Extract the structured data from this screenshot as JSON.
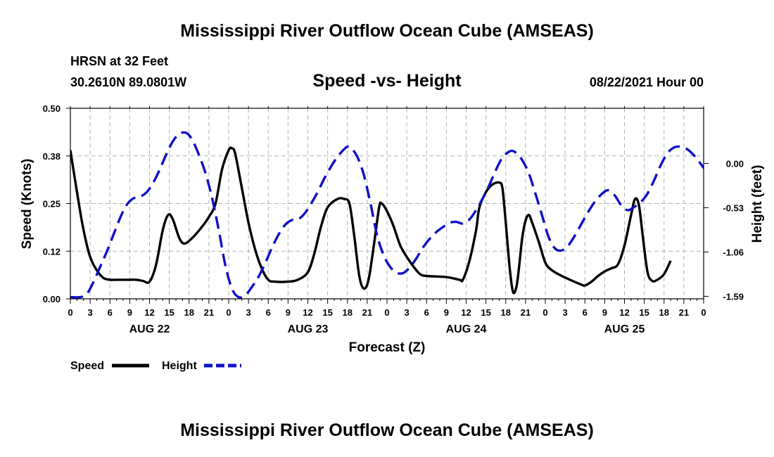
{
  "header": {
    "title": "Mississippi River Outflow Ocean Cube (AMSEAS)",
    "station": "HRSN at 32 Feet",
    "coords": "30.2610N  89.0801W",
    "subtitle": "Speed -vs- Height",
    "datetime": "08/22/2021 Hour 00"
  },
  "footer": {
    "title": "Mississippi River Outflow Ocean Cube (AMSEAS)"
  },
  "colors": {
    "speed": "#000000",
    "height": "#1010c8",
    "grid": "#b4b4b4"
  },
  "chart_data": {
    "type": "line",
    "title": "Speed -vs- Height",
    "xlabel": "Forecast (Z)",
    "ylabel_left": "Speed (Knots)",
    "ylabel_right": "Height (feet)",
    "x_range": [
      0,
      96
    ],
    "x_ticks": [
      0,
      3,
      6,
      9,
      12,
      15,
      18,
      21,
      24,
      27,
      30,
      33,
      36,
      39,
      42,
      45,
      48,
      51,
      54,
      57,
      60,
      63,
      66,
      69,
      72,
      75,
      78,
      81,
      84,
      87,
      90,
      93,
      96
    ],
    "x_tick_labels": [
      "0",
      "3",
      "6",
      "9",
      "12",
      "15",
      "18",
      "21",
      "0",
      "3",
      "6",
      "9",
      "12",
      "15",
      "18",
      "21",
      "0",
      "3",
      "6",
      "9",
      "12",
      "15",
      "18",
      "21",
      "0",
      "3",
      "6",
      "9",
      "12",
      "15",
      "18",
      "21",
      "0"
    ],
    "day_labels": [
      {
        "label": "AUG 22",
        "x": 12
      },
      {
        "label": "AUG 23",
        "x": 36
      },
      {
        "label": "AUG 24",
        "x": 60
      },
      {
        "label": "AUG 25",
        "x": 84
      }
    ],
    "ylim_left": [
      0,
      0.5
    ],
    "y_ticks_left": [
      0.0,
      0.125,
      0.25,
      0.375,
      0.5
    ],
    "y_tick_labels_left": [
      "0.00",
      "0.12",
      "0.25",
      "0.38",
      "0.50"
    ],
    "ylim_right": [
      -1.62,
      0.66
    ],
    "y_ticks_right": [
      0.0,
      -0.53,
      -1.06,
      -1.59
    ],
    "y_tick_labels_right": [
      "0.00",
      "-0.53",
      "-1.06",
      "-1.59"
    ],
    "grid": true,
    "series": [
      {
        "name": "Speed",
        "axis": "left",
        "style": "solid",
        "points": [
          [
            0,
            0.39
          ],
          [
            1,
            0.28
          ],
          [
            2,
            0.18
          ],
          [
            3,
            0.11
          ],
          [
            4,
            0.075
          ],
          [
            5,
            0.055
          ],
          [
            6,
            0.05
          ],
          [
            7,
            0.05
          ],
          [
            8,
            0.05
          ],
          [
            9,
            0.05
          ],
          [
            10,
            0.05
          ],
          [
            11,
            0.047
          ],
          [
            12,
            0.045
          ],
          [
            13,
            0.09
          ],
          [
            14,
            0.18
          ],
          [
            14.8,
            0.22
          ],
          [
            15.5,
            0.21
          ],
          [
            16.5,
            0.16
          ],
          [
            17.3,
            0.145
          ],
          [
            18.5,
            0.16
          ],
          [
            20,
            0.19
          ],
          [
            21,
            0.215
          ],
          [
            22,
            0.25
          ],
          [
            23,
            0.34
          ],
          [
            24,
            0.39
          ],
          [
            24.5,
            0.395
          ],
          [
            25,
            0.38
          ],
          [
            26,
            0.29
          ],
          [
            27,
            0.2
          ],
          [
            28,
            0.13
          ],
          [
            29,
            0.08
          ],
          [
            30,
            0.05
          ],
          [
            31,
            0.045
          ],
          [
            33,
            0.045
          ],
          [
            34.5,
            0.05
          ],
          [
            36,
            0.07
          ],
          [
            37,
            0.12
          ],
          [
            38,
            0.19
          ],
          [
            39,
            0.24
          ],
          [
            40.5,
            0.262
          ],
          [
            41.5,
            0.262
          ],
          [
            42.3,
            0.25
          ],
          [
            43,
            0.17
          ],
          [
            43.8,
            0.06
          ],
          [
            44.5,
            0.027
          ],
          [
            45.2,
            0.05
          ],
          [
            46,
            0.14
          ],
          [
            46.8,
            0.24
          ],
          [
            47.2,
            0.25
          ],
          [
            48,
            0.23
          ],
          [
            49,
            0.19
          ],
          [
            50,
            0.14
          ],
          [
            51,
            0.11
          ],
          [
            52,
            0.085
          ],
          [
            53,
            0.065
          ],
          [
            54,
            0.06
          ],
          [
            57,
            0.057
          ],
          [
            59,
            0.05
          ],
          [
            59.5,
            0.05
          ],
          [
            60.5,
            0.1
          ],
          [
            61.5,
            0.18
          ],
          [
            62,
            0.24
          ],
          [
            63,
            0.28
          ],
          [
            64,
            0.3
          ],
          [
            65,
            0.305
          ],
          [
            65.5,
            0.29
          ],
          [
            66,
            0.2
          ],
          [
            66.6,
            0.08
          ],
          [
            67.1,
            0.018
          ],
          [
            67.6,
            0.03
          ],
          [
            68,
            0.08
          ],
          [
            68.5,
            0.16
          ],
          [
            69,
            0.205
          ],
          [
            69.5,
            0.22
          ],
          [
            70,
            0.2
          ],
          [
            71,
            0.15
          ],
          [
            72,
            0.095
          ],
          [
            73,
            0.075
          ],
          [
            74.5,
            0.06
          ],
          [
            76,
            0.048
          ],
          [
            77.5,
            0.037
          ],
          [
            78,
            0.035
          ],
          [
            79,
            0.045
          ],
          [
            80,
            0.06
          ],
          [
            81,
            0.072
          ],
          [
            82,
            0.08
          ],
          [
            83,
            0.09
          ],
          [
            84,
            0.14
          ],
          [
            85,
            0.22
          ],
          [
            85.6,
            0.262
          ],
          [
            86.2,
            0.245
          ],
          [
            86.8,
            0.16
          ],
          [
            87.5,
            0.07
          ],
          [
            88.2,
            0.047
          ],
          [
            89,
            0.05
          ],
          [
            90,
            0.065
          ],
          [
            91,
            0.1
          ]
        ]
      },
      {
        "name": "Height",
        "axis": "right",
        "style": "dashed",
        "points": [
          [
            0,
            -1.6
          ],
          [
            1.5,
            -1.6
          ],
          [
            2.5,
            -1.56
          ],
          [
            3.5,
            -1.42
          ],
          [
            4.5,
            -1.24
          ],
          [
            5.5,
            -1.06
          ],
          [
            6.5,
            -0.86
          ],
          [
            7.5,
            -0.66
          ],
          [
            8.5,
            -0.5
          ],
          [
            9.5,
            -0.42
          ],
          [
            10.5,
            -0.4
          ],
          [
            11.5,
            -0.35
          ],
          [
            12.5,
            -0.24
          ],
          [
            13.5,
            -0.08
          ],
          [
            14.5,
            0.1
          ],
          [
            15.5,
            0.26
          ],
          [
            16.3,
            0.34
          ],
          [
            17,
            0.37
          ],
          [
            17.7,
            0.36
          ],
          [
            18.5,
            0.28
          ],
          [
            19.5,
            0.1
          ],
          [
            20.5,
            -0.12
          ],
          [
            21.5,
            -0.42
          ],
          [
            22.5,
            -0.8
          ],
          [
            23.5,
            -1.22
          ],
          [
            24.5,
            -1.5
          ],
          [
            25.5,
            -1.6
          ],
          [
            26.5,
            -1.58
          ],
          [
            27.5,
            -1.48
          ],
          [
            28.5,
            -1.36
          ],
          [
            29.5,
            -1.2
          ],
          [
            30.5,
            -1.02
          ],
          [
            31.5,
            -0.86
          ],
          [
            32.5,
            -0.74
          ],
          [
            33.5,
            -0.68
          ],
          [
            34.5,
            -0.67
          ],
          [
            35.5,
            -0.6
          ],
          [
            36.5,
            -0.48
          ],
          [
            37.5,
            -0.34
          ],
          [
            38.5,
            -0.18
          ],
          [
            39.5,
            -0.04
          ],
          [
            40.5,
            0.08
          ],
          [
            41.5,
            0.17
          ],
          [
            42,
            0.2
          ],
          [
            42.5,
            0.19
          ],
          [
            43.5,
            0.08
          ],
          [
            44.5,
            -0.14
          ],
          [
            45.5,
            -0.48
          ],
          [
            46.5,
            -0.86
          ],
          [
            47.5,
            -1.1
          ],
          [
            48.5,
            -1.24
          ],
          [
            49.5,
            -1.31
          ],
          [
            50.5,
            -1.31
          ],
          [
            51.5,
            -1.24
          ],
          [
            52.5,
            -1.13
          ],
          [
            53.5,
            -1.0
          ],
          [
            54.5,
            -0.9
          ],
          [
            55.5,
            -0.82
          ],
          [
            56.5,
            -0.76
          ],
          [
            57.5,
            -0.71
          ],
          [
            58.5,
            -0.7
          ],
          [
            59.5,
            -0.72
          ],
          [
            60.5,
            -0.67
          ],
          [
            61.5,
            -0.56
          ],
          [
            62.5,
            -0.42
          ],
          [
            63.5,
            -0.26
          ],
          [
            64.5,
            -0.08
          ],
          [
            65.5,
            0.07
          ],
          [
            66.5,
            0.14
          ],
          [
            67,
            0.15
          ],
          [
            67.5,
            0.13
          ],
          [
            68.5,
            0.04
          ],
          [
            69.5,
            -0.12
          ],
          [
            70.5,
            -0.36
          ],
          [
            71.5,
            -0.62
          ],
          [
            72.5,
            -0.88
          ],
          [
            73.5,
            -1.02
          ],
          [
            74.5,
            -1.04
          ],
          [
            75.5,
            -0.98
          ],
          [
            76.5,
            -0.86
          ],
          [
            77.5,
            -0.72
          ],
          [
            78.5,
            -0.58
          ],
          [
            79.5,
            -0.46
          ],
          [
            80.5,
            -0.37
          ],
          [
            81.5,
            -0.32
          ],
          [
            82.5,
            -0.38
          ],
          [
            83.5,
            -0.5
          ],
          [
            84.5,
            -0.56
          ],
          [
            85.5,
            -0.52
          ],
          [
            86.5,
            -0.46
          ],
          [
            87.5,
            -0.36
          ],
          [
            88.5,
            -0.2
          ],
          [
            89.5,
            -0.02
          ],
          [
            90.5,
            0.12
          ],
          [
            91.5,
            0.19
          ],
          [
            92.5,
            0.2
          ],
          [
            93.5,
            0.17
          ],
          [
            94.5,
            0.1
          ],
          [
            95.5,
            0.0
          ],
          [
            96.5,
            -0.12
          ],
          [
            97.5,
            -0.36
          ]
        ]
      }
    ],
    "legend": [
      {
        "label": "Speed",
        "series": "Speed"
      },
      {
        "label": "Height",
        "series": "Height"
      }
    ],
    "legend_position": "bottom-left"
  }
}
